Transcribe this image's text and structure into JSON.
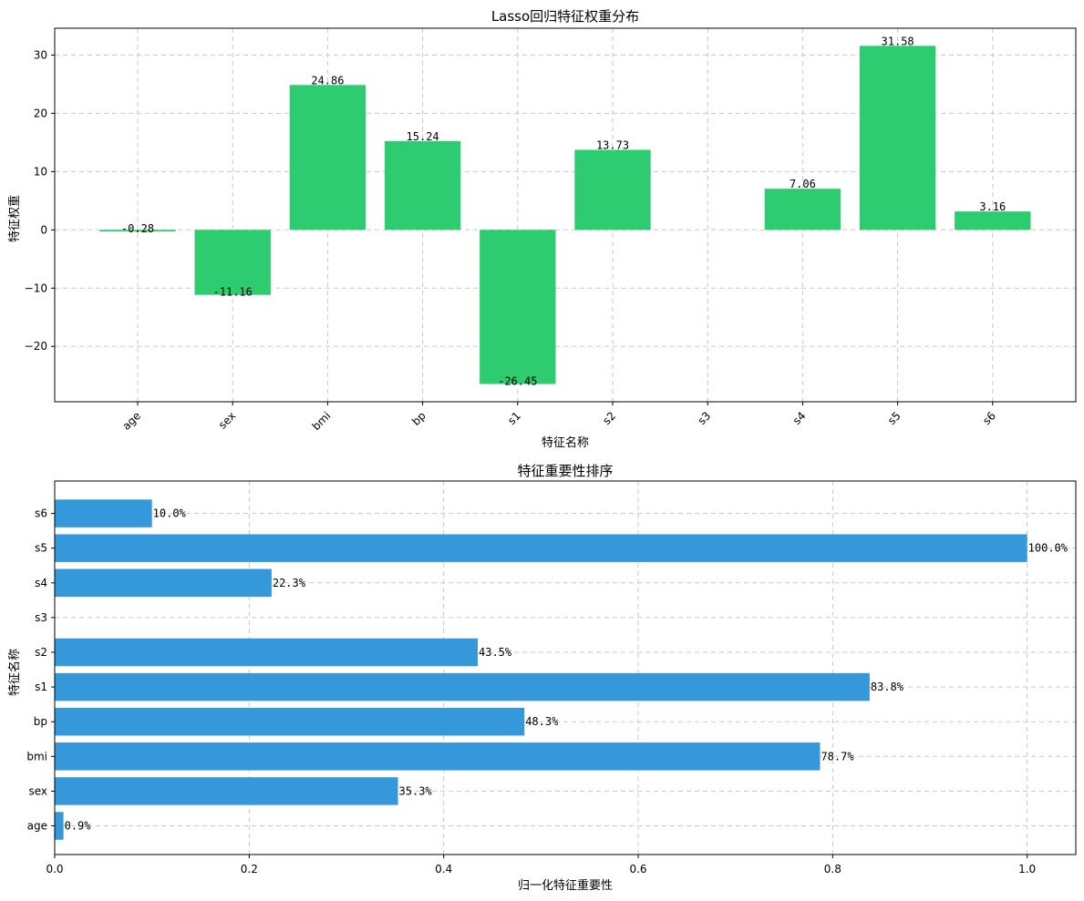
{
  "chart_data": [
    {
      "type": "bar",
      "title": "Lasso回归特征权重分布",
      "xlabel": "特征名称",
      "ylabel": "特征权重",
      "categories": [
        "age",
        "sex",
        "bmi",
        "bp",
        "s1",
        "s2",
        "s3",
        "s4",
        "s5",
        "s6"
      ],
      "values": [
        -0.28,
        -11.16,
        24.86,
        15.24,
        -26.45,
        13.73,
        0,
        7.06,
        31.58,
        3.16
      ],
      "value_labels": [
        "-0.28",
        "-11.16",
        "24.86",
        "15.24",
        "-26.45",
        "13.73",
        "",
        "7.06",
        "31.58",
        "3.16"
      ],
      "ylim": [
        -29.5,
        34.6
      ],
      "yticks": [
        -20,
        -10,
        0,
        10,
        20,
        30
      ],
      "ytick_labels": [
        "−20",
        "−10",
        "0",
        "10",
        "20",
        "30"
      ],
      "color": "#2ecc71",
      "grid": true
    },
    {
      "type": "barh",
      "title": "特征重要性排序",
      "xlabel": "归一化特征重要性",
      "ylabel": "特征名称",
      "categories": [
        "age",
        "sex",
        "bmi",
        "bp",
        "s1",
        "s2",
        "s3",
        "s4",
        "s5",
        "s6"
      ],
      "values": [
        0.009,
        0.353,
        0.787,
        0.483,
        0.838,
        0.435,
        0,
        0.223,
        1.0,
        0.1
      ],
      "value_labels": [
        "0.9%",
        "35.3%",
        "78.7%",
        "48.3%",
        "83.8%",
        "43.5%",
        "",
        "22.3%",
        "100.0%",
        "10.0%"
      ],
      "xlim": [
        0,
        1.05
      ],
      "xticks": [
        0,
        0.2,
        0.4,
        0.6,
        0.8,
        1.0
      ],
      "xtick_labels": [
        "0.0",
        "0.2",
        "0.4",
        "0.6",
        "0.8",
        "1.0"
      ],
      "color": "#3498db",
      "grid": true
    }
  ]
}
